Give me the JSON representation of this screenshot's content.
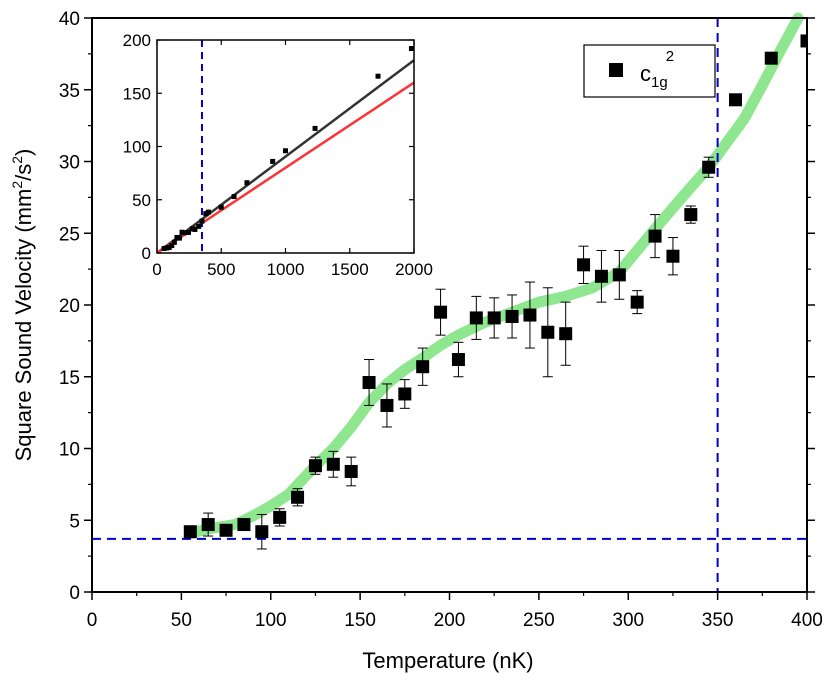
{
  "chart_data": {
    "type": "scatter",
    "main": {
      "xlabel": "Temperature (nK)",
      "ylabel_parts": {
        "base": "Square Sound Velocity (mm",
        "sup1": "2",
        "mid": "/s",
        "sup2": "2",
        "end": ")"
      },
      "xlim": [
        0,
        400
      ],
      "ylim": [
        0,
        40
      ],
      "x_ticks": [
        0,
        50,
        100,
        150,
        200,
        250,
        300,
        350,
        400
      ],
      "y_ticks": [
        0,
        5,
        10,
        15,
        20,
        25,
        30,
        35,
        40
      ],
      "legend": {
        "position": "top-right",
        "base": "c",
        "sub": "1g",
        "sup": "2"
      },
      "series": [
        {
          "marker": "square",
          "color": "#000000",
          "points": [
            {
              "x": 55,
              "y": 4.2,
              "err": 0.3
            },
            {
              "x": 65,
              "y": 4.7,
              "err": 0.8
            },
            {
              "x": 75,
              "y": 4.3,
              "err": 0.3
            },
            {
              "x": 85,
              "y": 4.7,
              "err": 0.3
            },
            {
              "x": 95,
              "y": 4.2,
              "err": 1.2
            },
            {
              "x": 105,
              "y": 5.2,
              "err": 0.6
            },
            {
              "x": 115,
              "y": 6.6,
              "err": 0.6
            },
            {
              "x": 125,
              "y": 8.8,
              "err": 0.6
            },
            {
              "x": 135,
              "y": 8.9,
              "err": 0.9
            },
            {
              "x": 145,
              "y": 8.4,
              "err": 1.0
            },
            {
              "x": 155,
              "y": 14.6,
              "err": 1.6
            },
            {
              "x": 165,
              "y": 13.0,
              "err": 1.5
            },
            {
              "x": 175,
              "y": 13.8,
              "err": 1.0
            },
            {
              "x": 185,
              "y": 15.7,
              "err": 1.3
            },
            {
              "x": 195,
              "y": 19.5,
              "err": 1.6
            },
            {
              "x": 205,
              "y": 16.2,
              "err": 1.2
            },
            {
              "x": 215,
              "y": 19.1,
              "err": 1.5
            },
            {
              "x": 225,
              "y": 19.1,
              "err": 1.4
            },
            {
              "x": 235,
              "y": 19.2,
              "err": 1.5
            },
            {
              "x": 245,
              "y": 19.3,
              "err": 2.3
            },
            {
              "x": 255,
              "y": 18.1,
              "err": 3.1
            },
            {
              "x": 265,
              "y": 18.0,
              "err": 2.2
            },
            {
              "x": 275,
              "y": 22.8,
              "err": 1.3
            },
            {
              "x": 285,
              "y": 22.0,
              "err": 1.8
            },
            {
              "x": 295,
              "y": 22.1,
              "err": 1.7
            },
            {
              "x": 305,
              "y": 20.2,
              "err": 0.8
            },
            {
              "x": 315,
              "y": 24.8,
              "err": 1.5
            },
            {
              "x": 325,
              "y": 23.4,
              "err": 1.3
            },
            {
              "x": 335,
              "y": 26.3,
              "err": 0.6
            },
            {
              "x": 345,
              "y": 29.6,
              "err": 0.7
            },
            {
              "x": 360,
              "y": 34.3,
              "err": 0
            },
            {
              "x": 380,
              "y": 37.2,
              "err": 0
            },
            {
              "x": 400,
              "y": 38.4,
              "err": 0
            }
          ]
        }
      ],
      "fit_curve": {
        "color": "#8ee68e",
        "points": [
          [
            55,
            4.1
          ],
          [
            65,
            4.4
          ],
          [
            80,
            4.7
          ],
          [
            90,
            5.3
          ],
          [
            100,
            6.0
          ],
          [
            110,
            6.8
          ],
          [
            125,
            8.8
          ],
          [
            135,
            10.0
          ],
          [
            145,
            11.5
          ],
          [
            155,
            13.2
          ],
          [
            165,
            14.5
          ],
          [
            175,
            15.5
          ],
          [
            185,
            16.3
          ],
          [
            195,
            17.2
          ],
          [
            205,
            17.9
          ],
          [
            220,
            18.8
          ],
          [
            235,
            19.5
          ],
          [
            250,
            20.2
          ],
          [
            265,
            20.6
          ],
          [
            280,
            21.2
          ],
          [
            295,
            22.3
          ],
          [
            305,
            23.8
          ],
          [
            315,
            25.3
          ],
          [
            330,
            27.5
          ],
          [
            345,
            29.6
          ],
          [
            355,
            31.3
          ],
          [
            365,
            33.0
          ],
          [
            375,
            35.3
          ],
          [
            385,
            37.7
          ],
          [
            395,
            40.0
          ]
        ]
      },
      "reference_lines": {
        "color": "#0000cc",
        "vertical_x": 350,
        "horizontal_y": 3.7
      }
    },
    "inset": {
      "xlim": [
        0,
        2000
      ],
      "ylim": [
        0,
        200
      ],
      "x_ticks": [
        0,
        500,
        1000,
        1500,
        2000
      ],
      "y_ticks": [
        0,
        50,
        100,
        150,
        200
      ],
      "points": [
        {
          "x": 55,
          "y": 4.2
        },
        {
          "x": 75,
          "y": 4.7
        },
        {
          "x": 95,
          "y": 5.2
        },
        {
          "x": 115,
          "y": 7.0
        },
        {
          "x": 135,
          "y": 10
        },
        {
          "x": 155,
          "y": 14.6
        },
        {
          "x": 175,
          "y": 14.0
        },
        {
          "x": 195,
          "y": 19.5
        },
        {
          "x": 215,
          "y": 19
        },
        {
          "x": 245,
          "y": 19.3
        },
        {
          "x": 275,
          "y": 22.8
        },
        {
          "x": 295,
          "y": 22.1
        },
        {
          "x": 325,
          "y": 25
        },
        {
          "x": 350,
          "y": 30
        },
        {
          "x": 380,
          "y": 37
        },
        {
          "x": 400,
          "y": 38.4
        },
        {
          "x": 500,
          "y": 43
        },
        {
          "x": 600,
          "y": 53
        },
        {
          "x": 700,
          "y": 66
        },
        {
          "x": 900,
          "y": 86
        },
        {
          "x": 1000,
          "y": 96
        },
        {
          "x": 1230,
          "y": 117
        },
        {
          "x": 1720,
          "y": 166
        },
        {
          "x": 1980,
          "y": 192
        }
      ],
      "lines": [
        {
          "color": "#333333",
          "from": [
            0,
            0
          ],
          "to": [
            2000,
            181
          ]
        },
        {
          "color": "#ff3333",
          "from": [
            0,
            0
          ],
          "to": [
            2000,
            160
          ]
        }
      ],
      "reference_line": {
        "color": "#0000cc",
        "vertical_x": 350
      }
    }
  }
}
